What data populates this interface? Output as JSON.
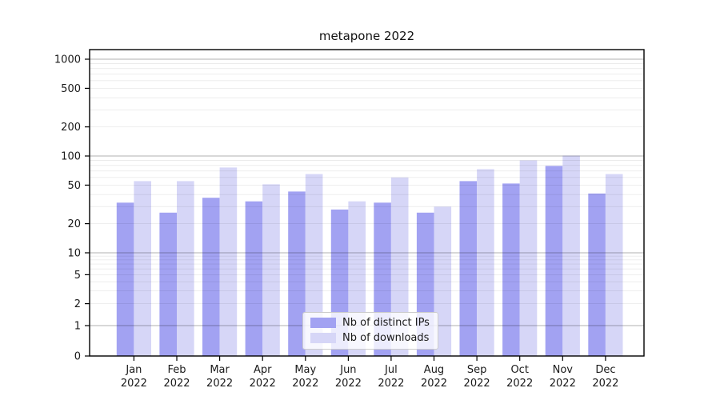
{
  "figure": {
    "title": "metapone 2022"
  },
  "chart_data": {
    "type": "bar",
    "title": "metapone 2022",
    "categories": [
      "Jan 2022",
      "Feb 2022",
      "Mar 2022",
      "Apr 2022",
      "May 2022",
      "Jun 2022",
      "Jul 2022",
      "Aug 2022",
      "Sep 2022",
      "Oct 2022",
      "Nov 2022",
      "Dec 2022"
    ],
    "series": [
      {
        "name": "Nb of distinct IPs",
        "color": "#a2a2f2",
        "values": [
          33,
          26,
          37,
          34,
          43,
          28,
          33,
          26,
          55,
          52,
          79,
          41
        ]
      },
      {
        "name": "Nb of downloads",
        "color": "#d6d6f7",
        "values": [
          55,
          55,
          76,
          51,
          65,
          34,
          60,
          30,
          73,
          90,
          101,
          65
        ]
      }
    ],
    "xlabel": "",
    "ylabel": "",
    "yscale": "symlog",
    "y_ticks": [
      0,
      1,
      2,
      5,
      10,
      20,
      50,
      100,
      200,
      500,
      1000
    ],
    "ylim": [
      0,
      1250
    ],
    "grid": "on",
    "grid_minor": "on",
    "legend_position": "lower-center-inside",
    "colors": {
      "bar_distinct_ips": "#a2a2f2",
      "bar_downloads": "#d6d6f7",
      "grid_major": "#b0b0b0",
      "grid_minor": "#ebebeb",
      "axis": "#000000",
      "text": "#1a1a1a"
    }
  }
}
